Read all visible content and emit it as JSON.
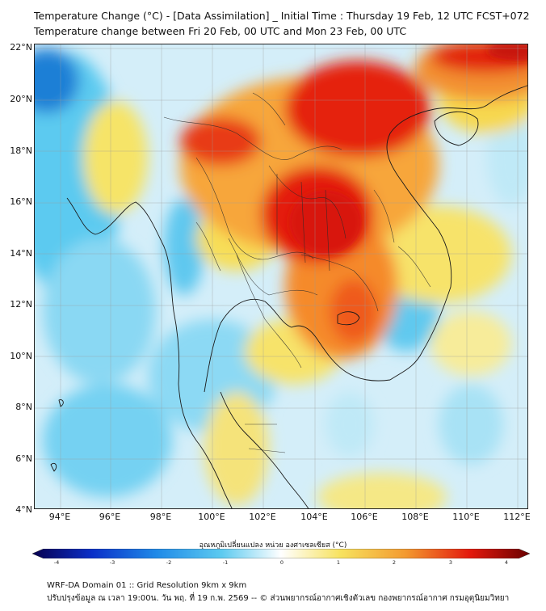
{
  "header": {
    "title_line1": "Temperature Change (°C) - [Data Assimilation] _ Initial Time : Thursday 19 Feb, 12 UTC FCST+072",
    "title_line2": "Temperature change between Fri 20 Feb, 00 UTC and Mon 23 Feb, 00 UTC"
  },
  "map": {
    "lat_labels": [
      "22°N",
      "20°N",
      "18°N",
      "16°N",
      "14°N",
      "12°N",
      "10°N",
      "8°N",
      "6°N",
      "4°N"
    ],
    "lon_labels": [
      "94°E",
      "96°E",
      "98°E",
      "100°E",
      "102°E",
      "104°E",
      "106°E",
      "108°E",
      "110°E",
      "112°E"
    ],
    "colors": {
      "sea_blue": "#55c8ef",
      "land_yellow": "#f7e25e",
      "hot_red": "#e8160c",
      "border": "#1a1a1a"
    }
  },
  "colorbar": {
    "title": "อุณหภูมิเปลี่ยนแปลง หน่วย องศาเซลเซียส (°C)",
    "tick_labels": [
      "-4",
      "-3",
      "-2",
      "-1",
      "0",
      "1",
      "2",
      "3",
      "4"
    ],
    "range": [
      -4,
      4
    ]
  },
  "footer": {
    "line1": "WRF-DA Domain 01 :: Grid Resolution 9km x 9km",
    "line2": "ปรับปรุงข้อมูล ณ เวลา 19:00น. วัน พฤ. ที่ 19 ก.พ. 2569 -- © ส่วนพยากรณ์อากาศเชิงตัวเลข กองพยากรณ์อากาศ กรมอุตุนิยมวิทยา"
  }
}
